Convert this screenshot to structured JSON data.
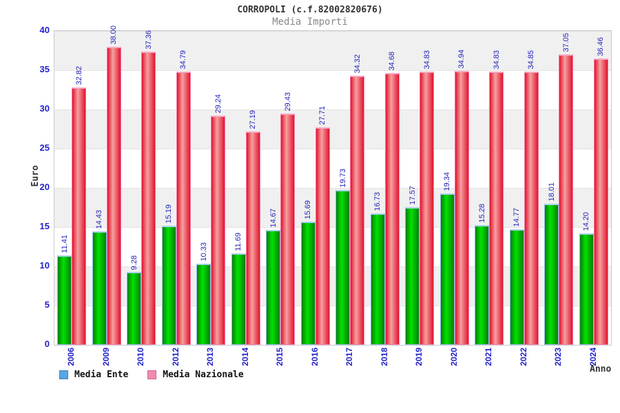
{
  "header": {
    "title": "CORROPOLI (c.f.82002820676)",
    "subtitle": "Media Importi"
  },
  "axes": {
    "y_title": "Euro",
    "x_title": "Anno",
    "y_ticks": [
      0,
      5,
      10,
      15,
      20,
      25,
      30,
      35,
      40
    ]
  },
  "legend": {
    "items": [
      {
        "label": "Media Ente"
      },
      {
        "label": "Media Nazionale"
      }
    ]
  },
  "colors": {
    "tick_blue": "#2222cc",
    "value_label_blue": "#2525bb",
    "band_gray": "#f0f0f0",
    "band_white": "#ffffff",
    "grid_line": "#e3e3e3",
    "ente_edge": "#087f08",
    "ente_center": "#00e200",
    "ente_border": "#8cbde4",
    "ente_cap": "#a9d2f0",
    "naz_edge": "#e2142f",
    "naz_center": "#f5a0a0",
    "naz_border": "#f47ca6",
    "naz_cap": "#f8a8c4",
    "legend_ente_swatch": "#57a5e8",
    "legend_ente_swatch_border": "#4a7eb0",
    "legend_naz_swatch": "#f08cb2",
    "legend_naz_swatch_border": "#cf6390",
    "title_color": "#333333",
    "subtitle_color": "#888888"
  },
  "chart_data": {
    "type": "bar",
    "title": "Media Importi",
    "xlabel": "Anno",
    "ylabel": "Euro",
    "ylim": [
      0,
      40
    ],
    "ytick_step": 5,
    "grid": "horizontal-bands",
    "legend_position": "bottom",
    "value_labels": "rotated-90-two-decimals",
    "categories": [
      "2006",
      "2009",
      "2010",
      "2012",
      "2013",
      "2014",
      "2015",
      "2016",
      "2017",
      "2018",
      "2019",
      "2020",
      "2021",
      "2022",
      "2023",
      "2024"
    ],
    "series": [
      {
        "name": "Media Ente",
        "values": [
          11.41,
          14.43,
          9.28,
          15.19,
          10.33,
          11.69,
          14.67,
          15.69,
          19.73,
          16.73,
          17.57,
          19.34,
          15.28,
          14.77,
          18.01,
          14.2
        ]
      },
      {
        "name": "Media Nazionale",
        "values": [
          32.82,
          38.0,
          37.36,
          34.79,
          29.24,
          27.19,
          29.43,
          27.71,
          34.32,
          34.68,
          34.83,
          34.94,
          34.83,
          34.85,
          37.05,
          36.46
        ]
      }
    ]
  }
}
